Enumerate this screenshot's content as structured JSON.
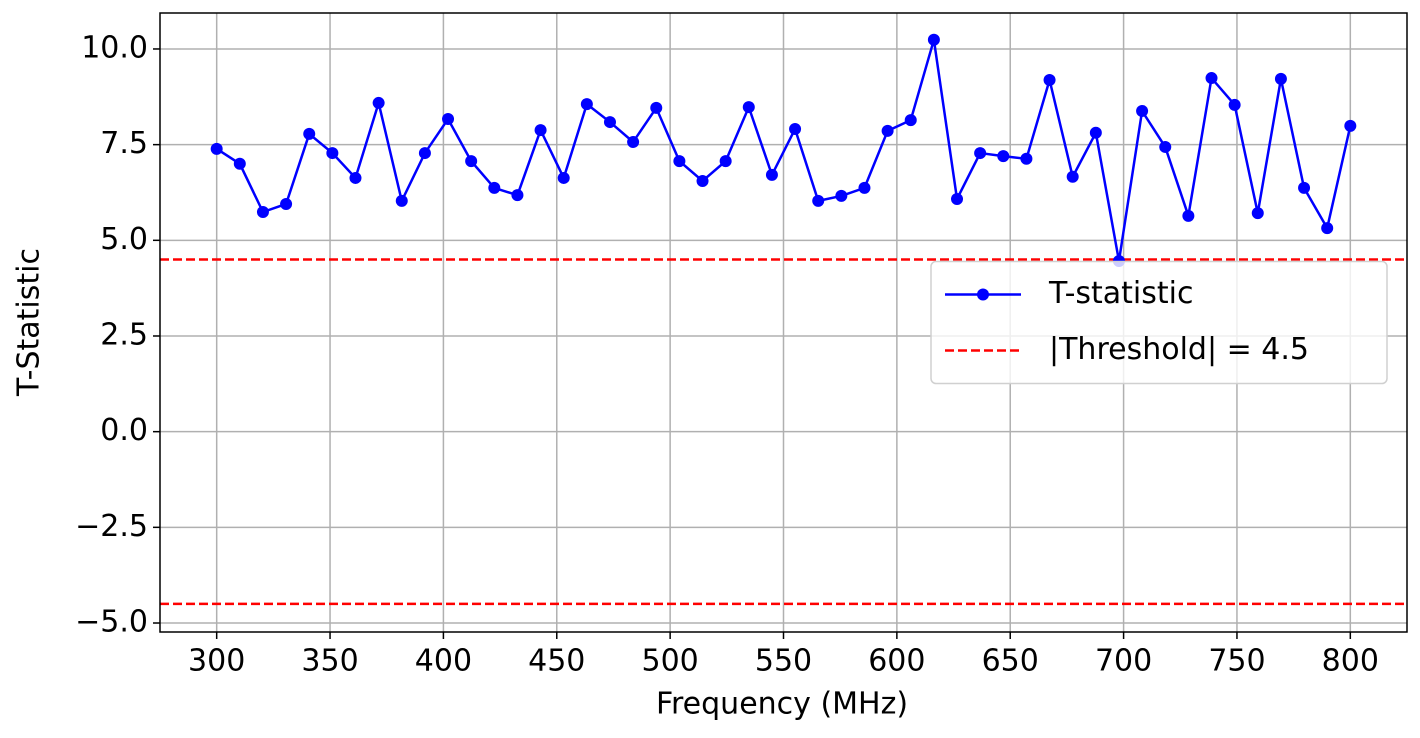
{
  "chart_data": {
    "type": "line",
    "xlabel": "Frequency (MHz)",
    "ylabel": "T-Statistic",
    "x": [
      300,
      310.2,
      320.41,
      330.61,
      340.82,
      351.02,
      361.22,
      371.43,
      381.63,
      391.84,
      402.04,
      412.24,
      422.45,
      432.65,
      442.86,
      453.06,
      463.27,
      473.47,
      483.67,
      493.88,
      504.08,
      514.29,
      524.49,
      534.69,
      544.9,
      555.1,
      565.31,
      575.51,
      585.71,
      595.92,
      606.12,
      616.33,
      626.53,
      636.73,
      646.94,
      657.14,
      667.35,
      677.55,
      687.76,
      697.96,
      708.16,
      718.37,
      728.57,
      738.78,
      748.98,
      759.18,
      769.39,
      779.59,
      789.8,
      800
    ],
    "series": [
      {
        "name": "T-statistic",
        "color": "#0000ff",
        "values": [
          7.39,
          7.0,
          5.74,
          5.95,
          7.78,
          7.28,
          6.63,
          8.59,
          6.03,
          7.28,
          8.17,
          7.07,
          6.37,
          6.18,
          7.88,
          6.63,
          8.56,
          8.09,
          7.57,
          8.46,
          7.07,
          6.55,
          7.07,
          8.48,
          6.71,
          7.91,
          6.03,
          6.16,
          6.37,
          7.86,
          8.14,
          10.24,
          6.08,
          7.28,
          7.2,
          7.13,
          9.19,
          6.66,
          7.81,
          4.46,
          8.38,
          7.44,
          5.64,
          9.24,
          8.54,
          5.71,
          9.22,
          6.37,
          5.32,
          7.99
        ]
      }
    ],
    "hlines": [
      {
        "name": "|Threshold| = 4.5",
        "color": "#ff0000",
        "values": [
          4.5,
          -4.5
        ]
      }
    ],
    "xlim": [
      275,
      825
    ],
    "ylim": [
      -5.235,
      10.94
    ],
    "xticks": [
      300,
      350,
      400,
      450,
      500,
      550,
      600,
      650,
      700,
      750,
      800
    ],
    "yticks": [
      {
        "value": -5,
        "label": "−5.0"
      },
      {
        "value": -2.5,
        "label": "−2.5"
      },
      {
        "value": 0,
        "label": "0.0"
      },
      2.5,
      {
        "value": 5,
        "label": "5.0"
      },
      7.5,
      {
        "value": 10,
        "label": "10.0"
      }
    ],
    "grid": true,
    "legend_loc": "center right"
  }
}
